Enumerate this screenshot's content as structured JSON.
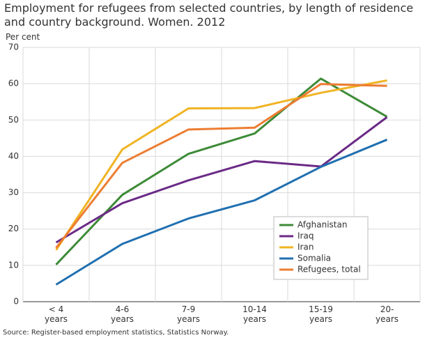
{
  "chart_data": {
    "type": "line",
    "title": "Employment for refugees from selected countries, by length of residence and country background. Women. 2012",
    "y_label": "Per cent",
    "source": "Source: Register-based employment statistics, Statistics Norway.",
    "categories": [
      "< 4 years",
      "4-6 years",
      "7-9 years",
      "10-14 years",
      "15-19 years",
      "20- years"
    ],
    "series": [
      {
        "name": "Afghanistan",
        "color": "#3d8b37",
        "values": [
          10.2,
          29.4,
          40.7,
          46.3,
          61.4,
          50.9
        ]
      },
      {
        "name": "Iraq",
        "color": "#6a2a86",
        "values": [
          16.3,
          27.1,
          33.4,
          38.7,
          37.2,
          50.8
        ]
      },
      {
        "name": "Iran",
        "color": "#f0b323",
        "values": [
          14.2,
          41.9,
          53.2,
          53.3,
          57.5,
          60.9
        ]
      },
      {
        "name": "Somalia",
        "color": "#1f6fb0",
        "values": [
          4.7,
          15.9,
          22.9,
          27.9,
          37.1,
          44.6
        ]
      },
      {
        "name": "Refugees, total",
        "color": "#ed7d31",
        "values": [
          14.8,
          38.2,
          47.4,
          47.9,
          59.9,
          59.4
        ]
      }
    ],
    "ylim": [
      0,
      70
    ],
    "yticks": [
      0,
      10,
      20,
      30,
      40,
      50,
      60,
      70
    ],
    "grid": true,
    "legend": "lower right"
  }
}
